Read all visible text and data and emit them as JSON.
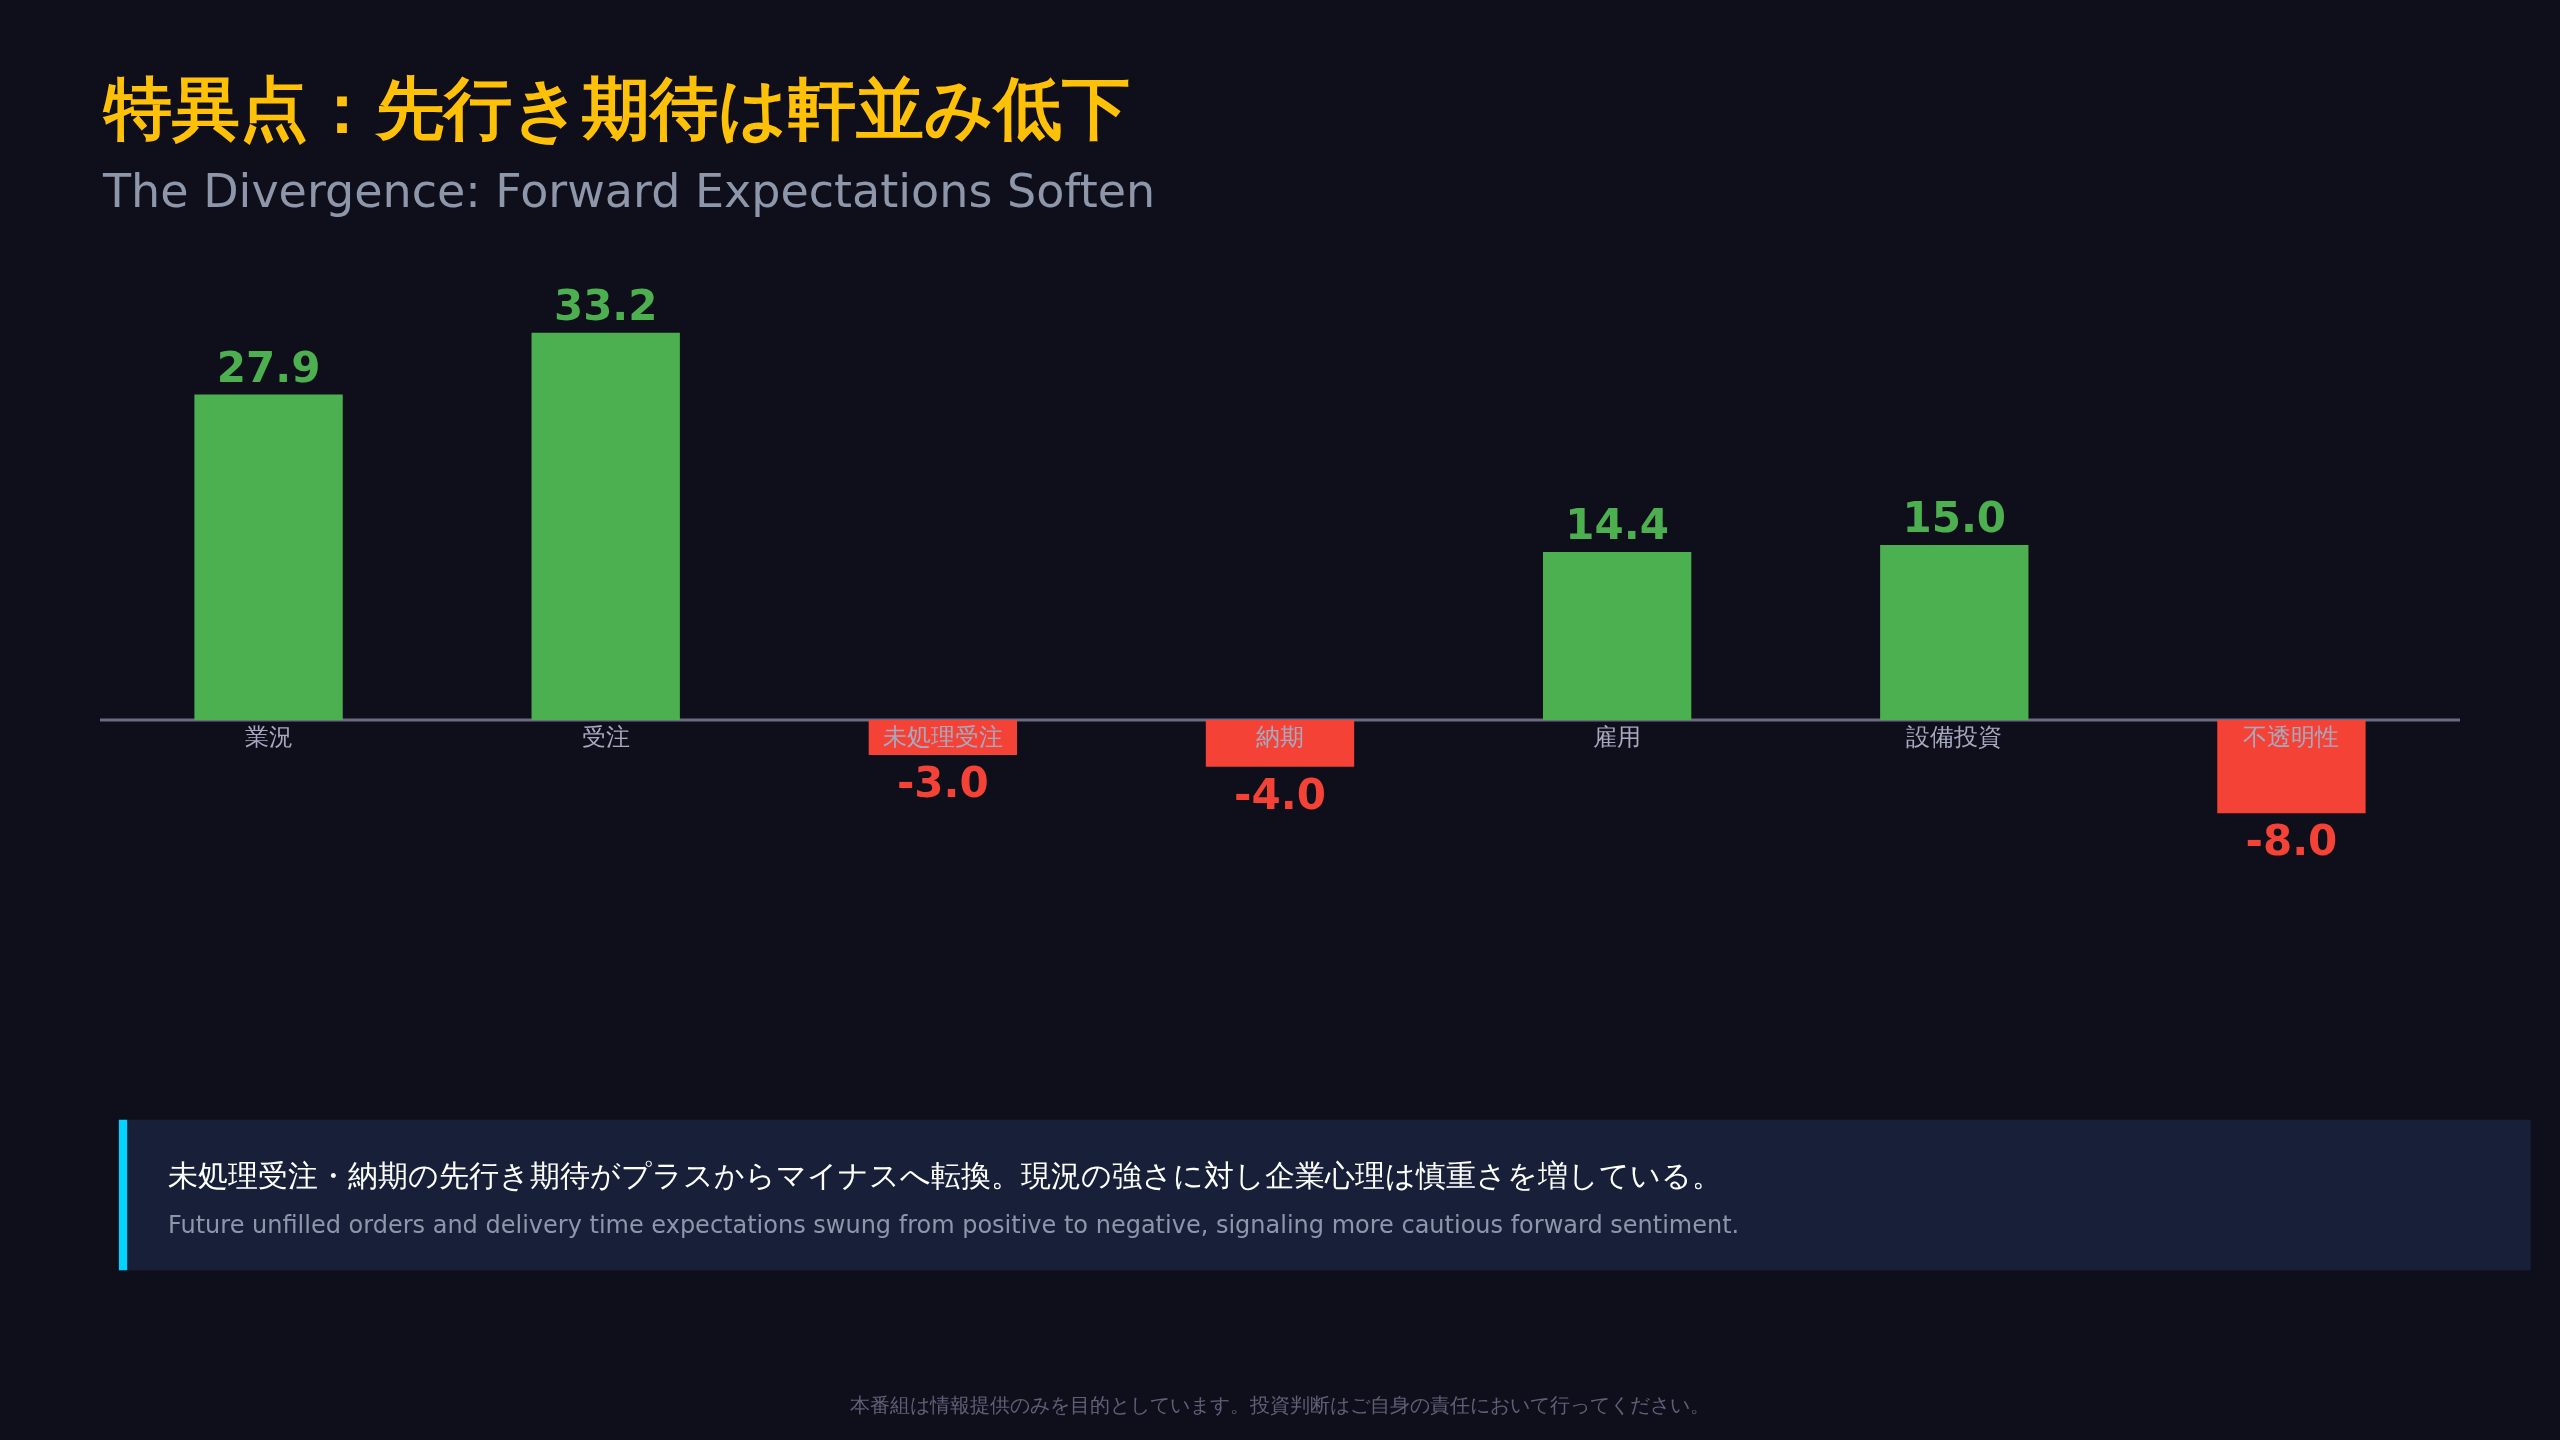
{
  "chart_data": {
    "type": "bar",
    "title": "特異点：先行き期待は軒並み低下",
    "subtitle": "The Divergence: Forward Expectations Soften",
    "categories": [
      "業況",
      "受注",
      "未処理受注",
      "納期",
      "雇用",
      "設備投資",
      "不透明性"
    ],
    "values": [
      27.9,
      33.2,
      -3.0,
      -4.0,
      14.4,
      15.0,
      -8.0
    ],
    "colors": [
      "#4caf50",
      "#4caf50",
      "#f44336",
      "#f44336",
      "#4caf50",
      "#4caf50",
      "#f44336"
    ],
    "value_labels": [
      "27.9",
      "33.2",
      "-3.0",
      "-4.0",
      "14.4",
      "15.0",
      "-8.0"
    ],
    "annotations": [
      "未処理受注・納期の先行き期待がプラスからマイナスへ転換。現況の強さに対し企業心理は慎重さを増している。",
      "Future unfilled orders and delivery time expectations swung from positive to negative, signaling more cautious forward sentiment.",
      "本番組は情報提供のみを目的としています。投資判断はご自身の責任において行ってください。"
    ],
    "grid": false,
    "legend": false
  }
}
